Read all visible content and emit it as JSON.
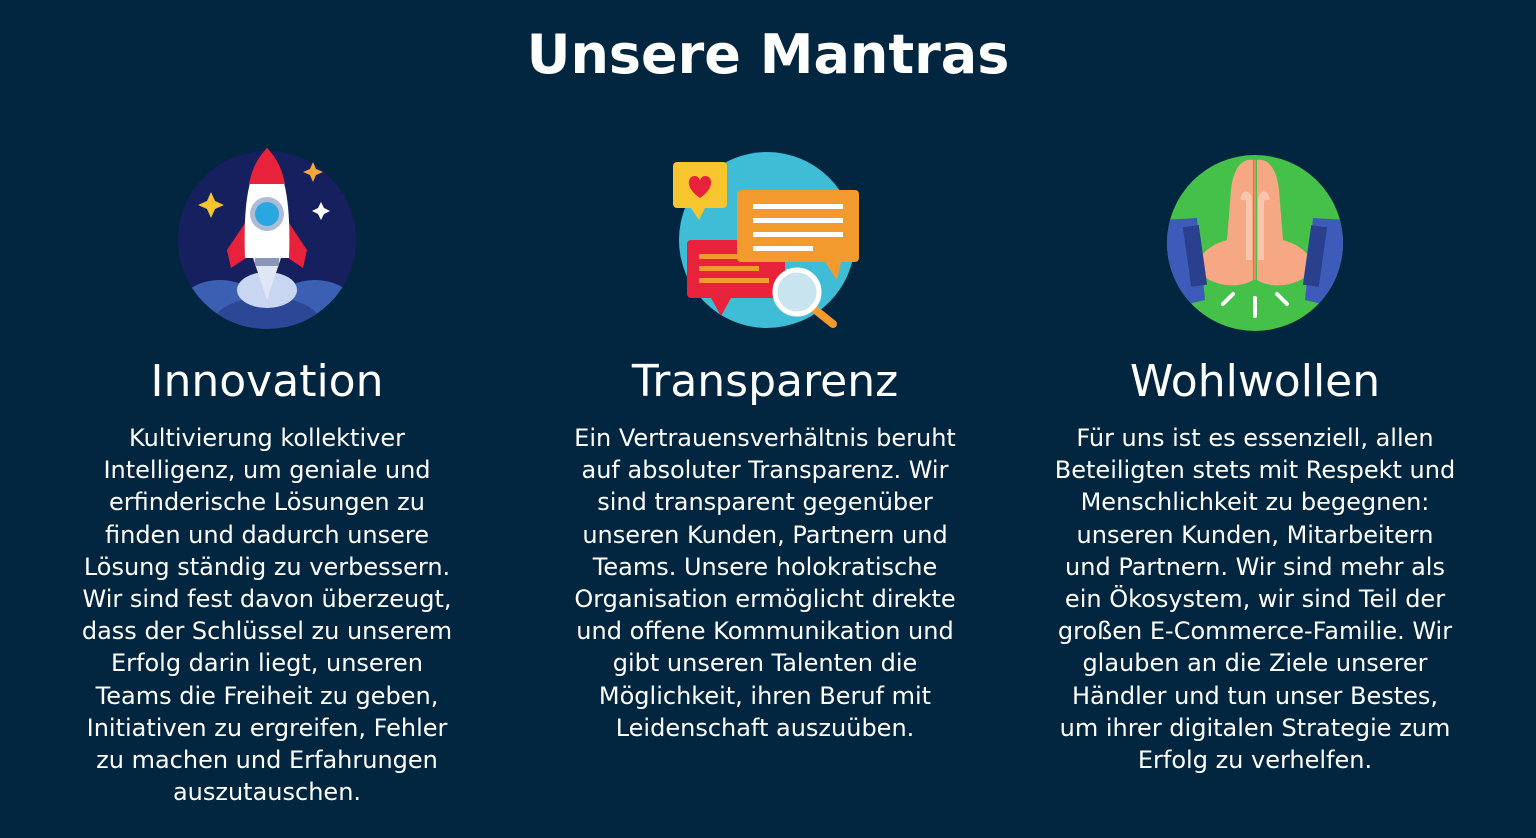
{
  "page": {
    "title": "Unsere Mantras",
    "background": "#022640"
  },
  "mantras": [
    {
      "icon": "rocket-icon",
      "title": "Innovation",
      "lines": [
        "Kultivierung kollektiver",
        "Intelligenz, um geniale und",
        "erfinderische Lösungen zu",
        "finden und dadurch unsere",
        "Lösung ständig zu verbessern.",
        "Wir sind fest davon überzeugt,",
        "dass der Schlüssel zu unserem",
        "Erfolg darin liegt, unseren",
        "Teams die Freiheit zu geben,",
        "Initiativen zu ergreifen, Fehler",
        "zu machen und Erfahrungen",
        "auszutauschen."
      ]
    },
    {
      "icon": "chat-bubbles-icon",
      "title": "Transparenz",
      "lines": [
        "Ein Vertrauensverhältnis beruht",
        "auf absoluter Transparenz. Wir",
        "sind transparent gegenüber",
        "unseren Kunden, Partnern und",
        "Teams. Unsere holokratische",
        "Organisation ermöglicht direkte",
        "und offene Kommunikation und",
        "gibt unseren Talenten die",
        "Möglichkeit, ihren Beruf mit",
        "Leidenschaft auszuüben."
      ]
    },
    {
      "icon": "praying-hands-icon",
      "title": "Wohlwollen",
      "lines": [
        "Für uns ist es essenziell, allen",
        "Beteiligten stets mit Respekt und",
        "Menschlichkeit zu begegnen:",
        "unseren Kunden, Mitarbeitern",
        "und Partnern. Wir sind mehr als",
        "ein Ökosystem, wir sind Teil der",
        "großen E-Commerce-Familie. Wir",
        "glauben an die Ziele unserer",
        "Händler und tun unser Bestes,",
        "um ihrer digitalen Strategie zum",
        "Erfolg zu verhelfen."
      ]
    }
  ]
}
